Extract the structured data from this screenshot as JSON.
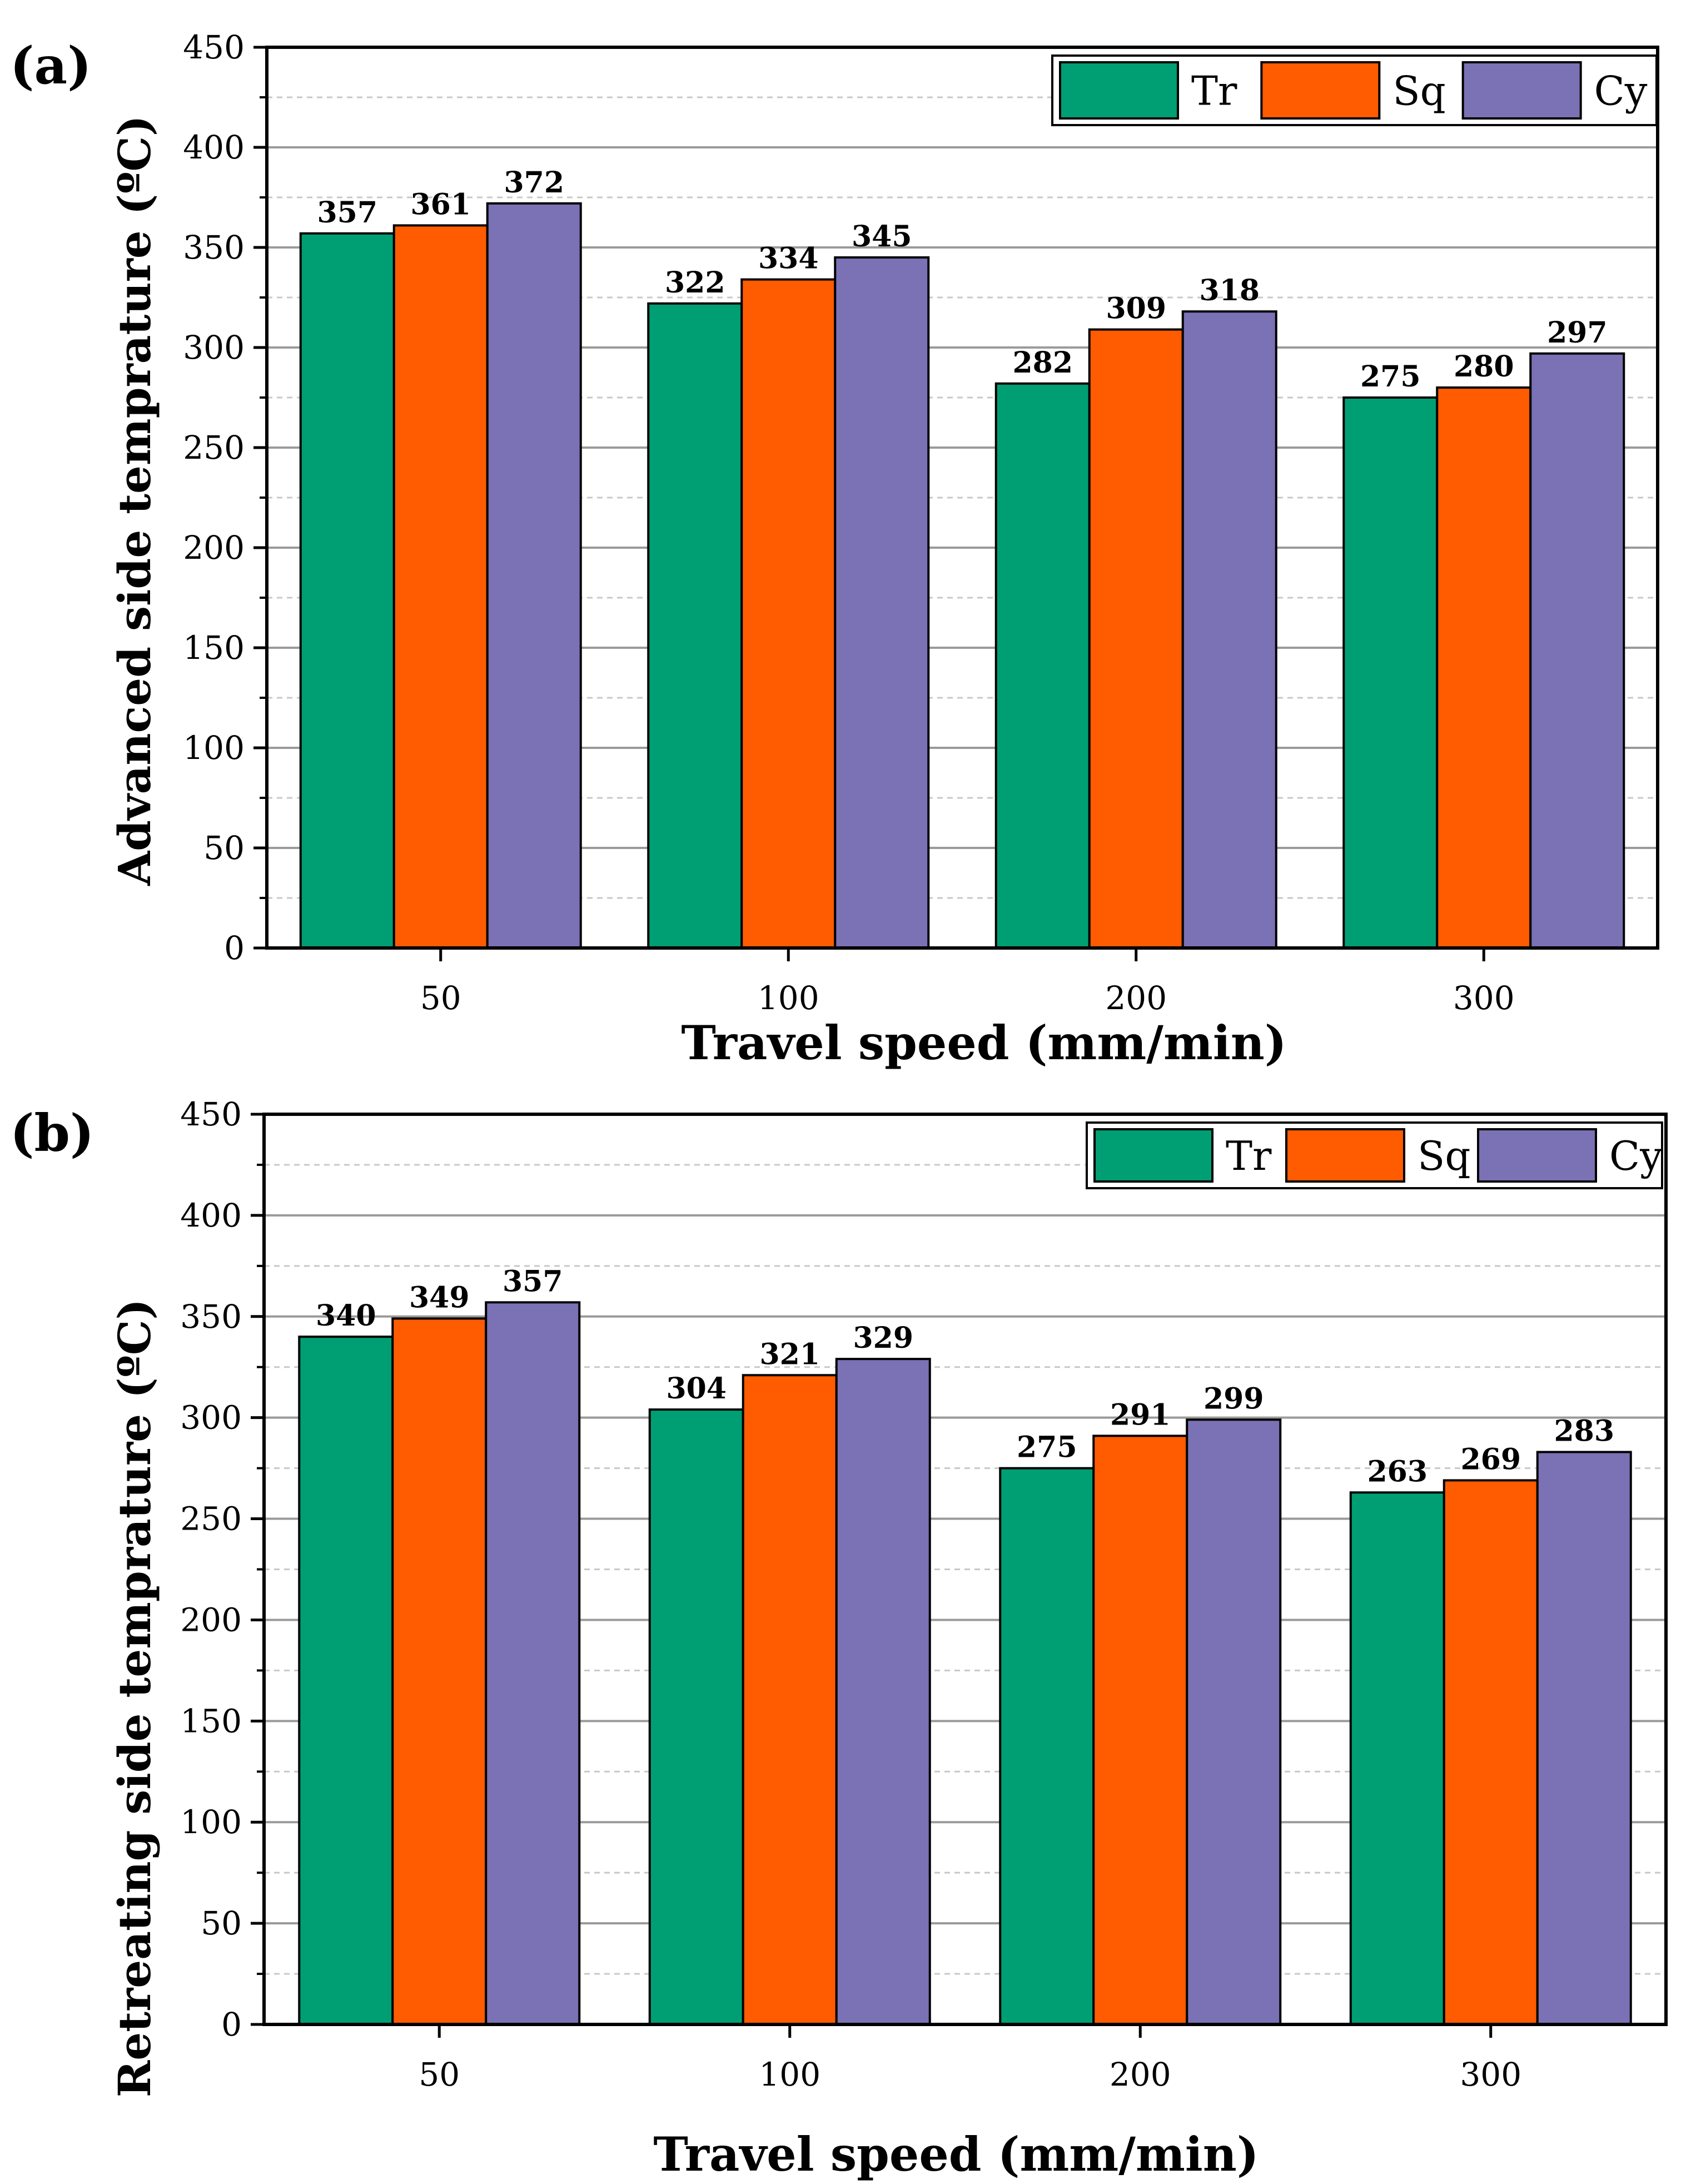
{
  "colors": {
    "tr": "#009E73",
    "sq": "#FF5B00",
    "cy": "#7B71B5"
  },
  "chart_data": [
    {
      "type": "bar",
      "panel_label": "(a)",
      "xlabel": "Travel speed (mm/min)",
      "ylabel": "Advanced side temprature (ºC)",
      "ylim": [
        0,
        450
      ],
      "yticks": [
        "0",
        "50",
        "100",
        "150",
        "200",
        "250",
        "300",
        "350",
        "400",
        "450"
      ],
      "categories": [
        "50",
        "100",
        "200",
        "300"
      ],
      "legend_position": "top-right",
      "grid": true,
      "series": [
        {
          "name": "Tr",
          "values": [
            357,
            322,
            282,
            275
          ]
        },
        {
          "name": "Sq",
          "values": [
            361,
            334,
            309,
            280
          ]
        },
        {
          "name": "Cy",
          "values": [
            372,
            345,
            318,
            297
          ]
        }
      ]
    },
    {
      "type": "bar",
      "panel_label": "(b)",
      "xlabel": "Travel speed (mm/min)",
      "ylabel": "Retreating side temprature (ºC)",
      "ylim": [
        0,
        450
      ],
      "yticks": [
        "0",
        "50",
        "100",
        "150",
        "200",
        "250",
        "300",
        "350",
        "400",
        "450"
      ],
      "categories": [
        "50",
        "100",
        "200",
        "300"
      ],
      "legend_position": "top-right",
      "grid": true,
      "series": [
        {
          "name": "Tr",
          "values": [
            340,
            304,
            275,
            263
          ]
        },
        {
          "name": "Sq",
          "values": [
            349,
            321,
            291,
            269
          ]
        },
        {
          "name": "Cy",
          "values": [
            357,
            329,
            299,
            283
          ]
        }
      ]
    }
  ]
}
